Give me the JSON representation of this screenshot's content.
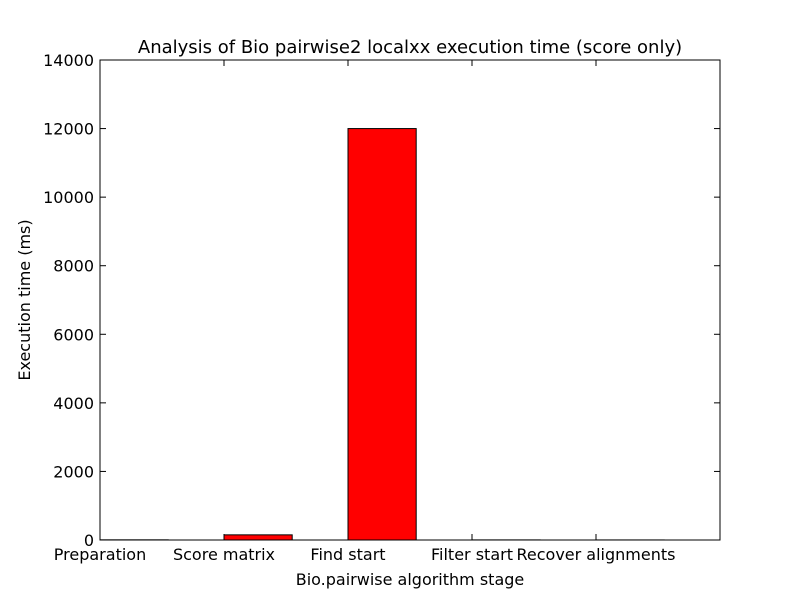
{
  "chart_data": {
    "type": "bar",
    "title": "Analysis of Bio pairwise2 localxx execution time (score only)",
    "xlabel": "Bio.pairwise algorithm stage",
    "ylabel": "Execution time (ms)",
    "categories": [
      "Preparation",
      "Score matrix",
      "Find start",
      "Filter start",
      "Recover alignments"
    ],
    "values": [
      5,
      150,
      12000,
      3,
      2
    ],
    "ylim": [
      0,
      14000
    ],
    "yticks": [
      0,
      2000,
      4000,
      6000,
      8000,
      10000,
      12000,
      14000
    ],
    "grid": false,
    "legend": "none",
    "bar_color": "#ff0000",
    "edge_color": "#000000"
  }
}
